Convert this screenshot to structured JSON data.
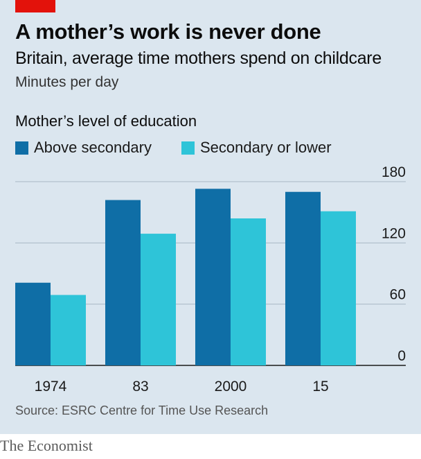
{
  "header": {
    "title": "A mother’s work is never done",
    "subtitle": "Britain, average time mothers spend on childcare",
    "units": "Minutes per day"
  },
  "legend": {
    "title": "Mother’s level of education",
    "items": [
      {
        "label": "Above secondary",
        "color": "#0f6ea6"
      },
      {
        "label": "Secondary or lower",
        "color": "#2ec4d8"
      }
    ]
  },
  "chart_data": {
    "type": "bar",
    "title": "A mother’s work is never done",
    "subtitle": "Britain, average time mothers spend on childcare",
    "ylabel": "Minutes per day",
    "categories": [
      "1974",
      "83",
      "2000",
      "15"
    ],
    "series": [
      {
        "name": "Above secondary",
        "color": "#0f6ea6",
        "values": [
          81,
          162,
          173,
          170
        ]
      },
      {
        "name": "Secondary or lower",
        "color": "#2ec4d8",
        "values": [
          69,
          129,
          144,
          151
        ]
      }
    ],
    "ylim": [
      0,
      180
    ],
    "yticks": [
      0,
      60,
      120,
      180
    ],
    "ytick_labels": [
      "0",
      "60",
      "120",
      "180"
    ],
    "y_axis_side": "right",
    "grid": true
  },
  "footer": {
    "source": "Source: ESRC Centre for Time Use Research",
    "brand": "The Economist"
  },
  "colors": {
    "background": "#dbe6ef",
    "brand_red": "#e3120b",
    "gridline": "#a9b8c4"
  }
}
